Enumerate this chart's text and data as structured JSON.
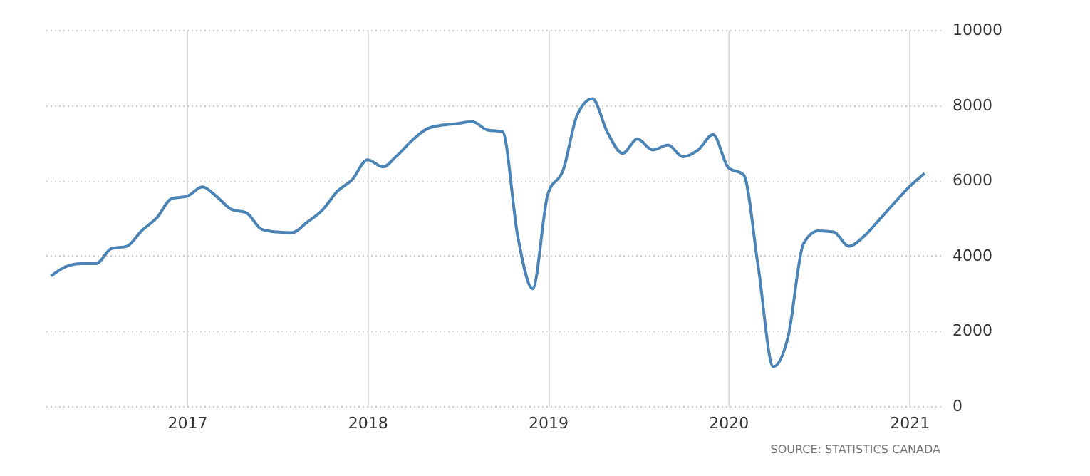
{
  "chart_data": {
    "type": "line",
    "x": [
      "2016-04",
      "2016-05",
      "2016-06",
      "2016-07",
      "2016-08",
      "2016-09",
      "2016-10",
      "2016-11",
      "2016-12",
      "2017-01",
      "2017-02",
      "2017-03",
      "2017-04",
      "2017-05",
      "2017-06",
      "2017-07",
      "2017-08",
      "2017-09",
      "2017-10",
      "2017-11",
      "2017-12",
      "2018-01",
      "2018-02",
      "2018-03",
      "2018-04",
      "2018-05",
      "2018-06",
      "2018-07",
      "2018-08",
      "2018-09",
      "2018-10",
      "2018-11",
      "2018-12",
      "2019-01",
      "2019-02",
      "2019-03",
      "2019-04",
      "2019-05",
      "2019-06",
      "2019-07",
      "2019-08",
      "2019-09",
      "2019-10",
      "2019-11",
      "2019-12",
      "2020-01",
      "2020-02",
      "2020-03",
      "2020-04",
      "2020-05",
      "2020-06",
      "2020-07",
      "2020-08",
      "2020-09",
      "2020-10",
      "2020-11",
      "2020-12",
      "2021-01",
      "2021-02"
    ],
    "series": [
      {
        "color": "#4a83b5",
        "values": [
          3460,
          3710,
          3790,
          3790,
          4190,
          4250,
          4660,
          5010,
          5520,
          5580,
          5830,
          5580,
          5230,
          5140,
          4700,
          4630,
          4610,
          4890,
          5200,
          5710,
          6020,
          6550,
          6360,
          6650,
          7060,
          7370,
          7470,
          7510,
          7560,
          7340,
          7300,
          4510,
          3120,
          5640,
          6280,
          7730,
          8170,
          7290,
          6720,
          7100,
          6810,
          6940,
          6630,
          6810,
          7220,
          6340,
          6150,
          3750,
          1050,
          1850,
          4320,
          4660,
          4630,
          4250,
          4510,
          4950,
          5390,
          5830,
          6190
        ]
      }
    ],
    "xlim": [
      "2016-03-15",
      "2021-03-05"
    ],
    "xticks": [
      "2017",
      "2018",
      "2019",
      "2020",
      "2021"
    ],
    "ylim": [
      0,
      10000
    ],
    "yticks": [
      0,
      2000,
      4000,
      6000,
      8000,
      10000
    ],
    "grid": true,
    "legend": false,
    "marker": "none",
    "line_style": "solid",
    "annotations": [
      "SOURCE: STATISTICS CANADA"
    ]
  }
}
